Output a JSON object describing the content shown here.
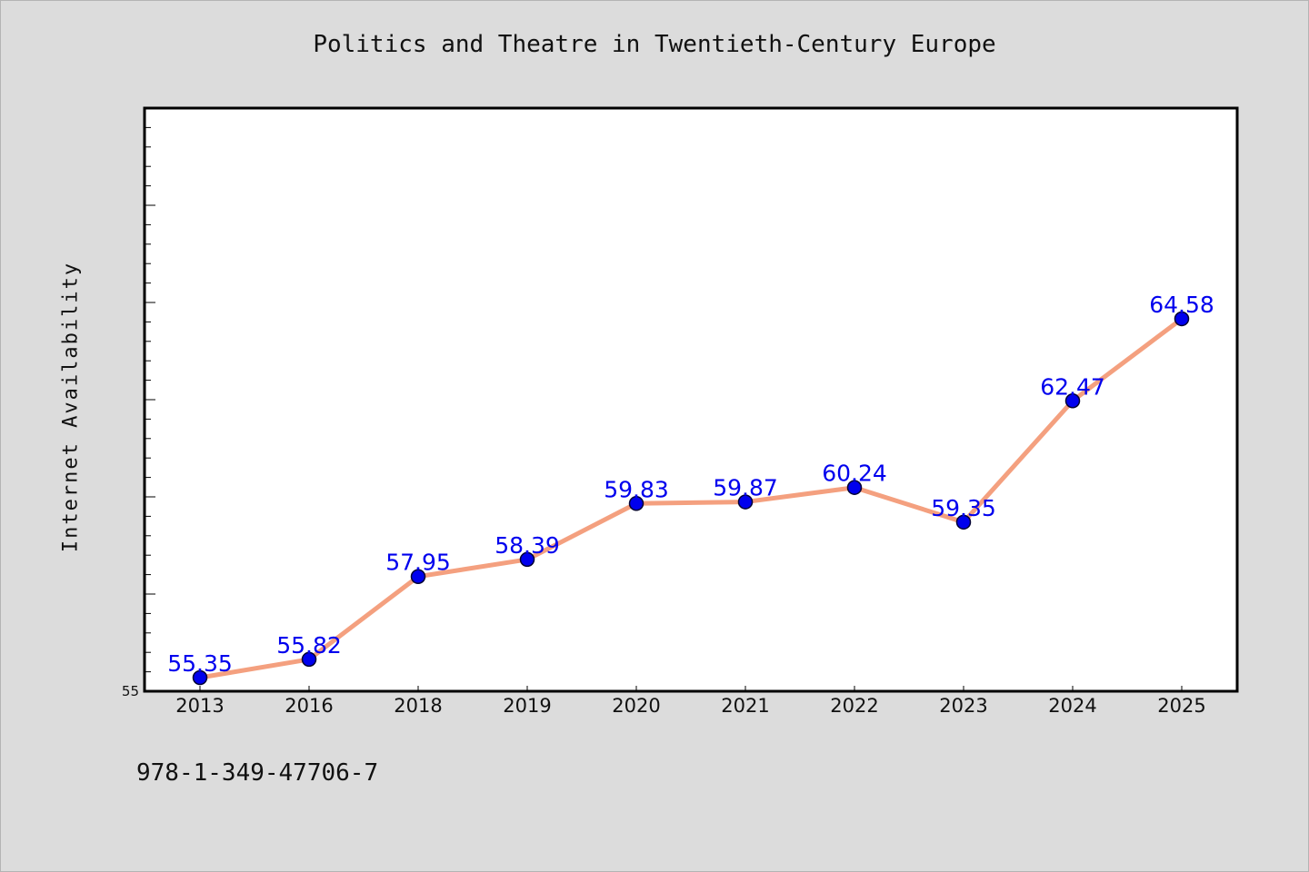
{
  "chart_data": {
    "type": "line",
    "title": "Politics and Theatre in Twentieth-Century Europe",
    "ylabel": "Internet Availability",
    "xlabel": "",
    "categories": [
      "2013",
      "2016",
      "2018",
      "2019",
      "2020",
      "2021",
      "2022",
      "2023",
      "2024",
      "2025"
    ],
    "values": [
      55.35,
      55.82,
      57.95,
      58.39,
      59.83,
      59.87,
      60.24,
      59.35,
      62.47,
      64.58
    ],
    "data_labels": [
      "55.35",
      "55.82",
      "57.95",
      "58.39",
      "59.83",
      "59.87",
      "60.24",
      "59.35",
      "62.47",
      "64.58"
    ],
    "ylim": [
      55,
      70
    ],
    "yticks_labeled": [
      "55"
    ],
    "grid": false,
    "legend": "none",
    "colors": {
      "line": "#f4a07f",
      "marker": "#0000ee",
      "marker_edge": "#000033",
      "data_label": "#0000ee",
      "background": "#dcdcdc",
      "plot_background": "#ffffff"
    }
  },
  "footer": {
    "isbn": "978-1-349-47706-7"
  }
}
